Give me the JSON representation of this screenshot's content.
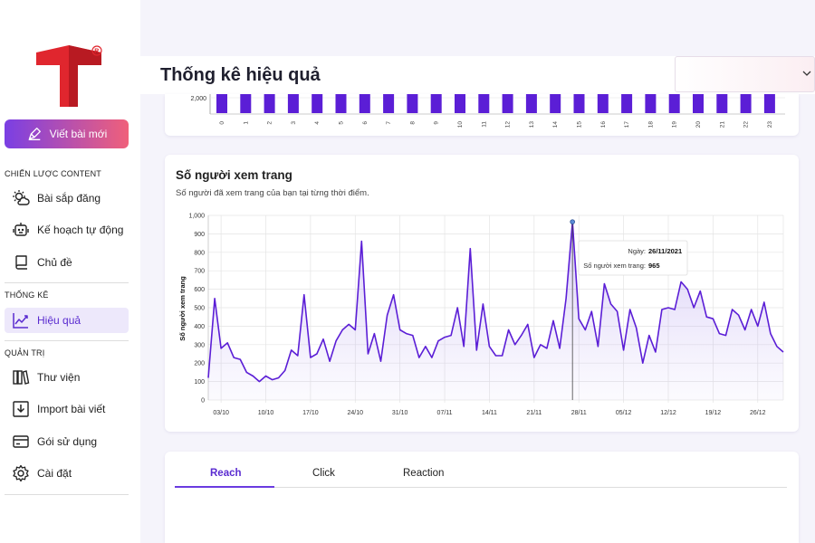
{
  "sidebar": {
    "new_post_label": "Viết bài mới",
    "sections": [
      {
        "title": "CHIẾN LƯỢC CONTENT",
        "items": [
          {
            "label": "Bài sắp đăng",
            "icon": "sun-cloud-icon"
          },
          {
            "label": "Kế hoạch tự động",
            "icon": "robot-icon"
          },
          {
            "label": "Chủ đề",
            "icon": "topic-icon"
          }
        ]
      },
      {
        "title": "THỐNG KÊ",
        "items": [
          {
            "label": "Hiệu quả",
            "icon": "trend-chart-icon",
            "active": true
          }
        ]
      },
      {
        "title": "QUẢN TRỊ",
        "items": [
          {
            "label": "Thư viện",
            "icon": "library-icon"
          },
          {
            "label": "Import bài viết",
            "icon": "import-icon"
          },
          {
            "label": "Gói sử dụng",
            "icon": "card-icon"
          },
          {
            "label": "Cài đặt",
            "icon": "gear-icon"
          }
        ]
      }
    ]
  },
  "header": {
    "title": "Thống kê hiệu quả",
    "select_value": ""
  },
  "colors": {
    "accent": "#5a2bd0",
    "bar": "#5b1ed6",
    "line": "#5b1ed6",
    "logo_red": "#e0262e"
  },
  "hour_chart": {
    "tick_label": "2,000",
    "hours": [
      "0",
      "1",
      "2",
      "3",
      "4",
      "5",
      "6",
      "7",
      "8",
      "9",
      "10",
      "11",
      "12",
      "13",
      "14",
      "15",
      "16",
      "17",
      "18",
      "19",
      "20",
      "21",
      "22",
      "23"
    ]
  },
  "views_card": {
    "title": "Số người xem trang",
    "subtitle": "Số người đã xem trang của bạn tại từng thời điểm."
  },
  "chart_data": {
    "type": "area",
    "ylabel": "Số người xem trang",
    "ylim": [
      0,
      1000
    ],
    "yticks": [
      "0",
      "100",
      "200",
      "300",
      "400",
      "500",
      "600",
      "700",
      "800",
      "900",
      "1,000"
    ],
    "xticks": [
      "03/10",
      "10/10",
      "17/10",
      "24/10",
      "31/10",
      "07/11",
      "14/11",
      "21/11",
      "28/11",
      "05/12",
      "12/12",
      "19/12",
      "26/12"
    ],
    "values": [
      120,
      550,
      280,
      310,
      230,
      220,
      150,
      130,
      100,
      130,
      110,
      120,
      160,
      270,
      240,
      570,
      230,
      250,
      330,
      210,
      320,
      380,
      410,
      380,
      860,
      250,
      360,
      210,
      460,
      570,
      380,
      360,
      350,
      230,
      290,
      230,
      320,
      340,
      350,
      500,
      290,
      820,
      270,
      520,
      290,
      240,
      240,
      380,
      300,
      350,
      410,
      230,
      300,
      280,
      430,
      280,
      550,
      965,
      440,
      380,
      480,
      290,
      630,
      520,
      480,
      270,
      490,
      390,
      200,
      350,
      260,
      490,
      500,
      490,
      640,
      600,
      500,
      590,
      450,
      440,
      360,
      350,
      490,
      460,
      380,
      490,
      400,
      530,
      360,
      290,
      260
    ],
    "tooltip": {
      "date_label": "Ngày:",
      "date_value": "26/11/2021",
      "value_label": "Số người xem trang:",
      "value_value": "965"
    }
  },
  "tabs": [
    {
      "label": "Reach",
      "active": true
    },
    {
      "label": "Click",
      "active": false
    },
    {
      "label": "Reaction",
      "active": false
    }
  ]
}
